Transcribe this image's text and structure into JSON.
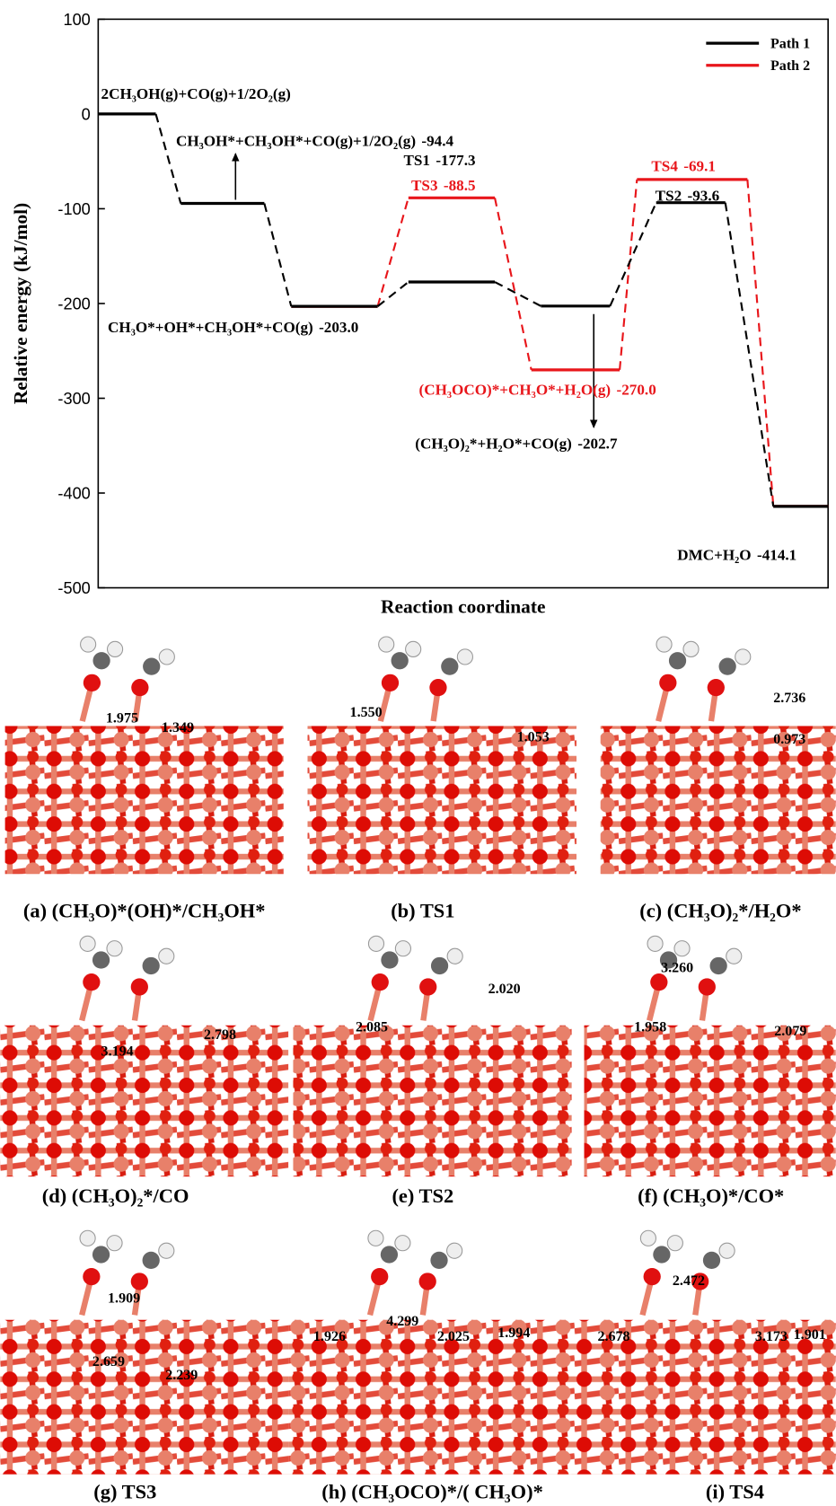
{
  "chart_data": {
    "type": "energy-profile",
    "ylabel": "Relative energy (kJ/mol)",
    "xlabel": "Reaction coordinate",
    "ylim": [
      -500,
      100
    ],
    "yticks": [
      100,
      0,
      -100,
      -200,
      -300,
      -400,
      -500
    ],
    "legend": "upper right",
    "series": [
      {
        "name": "Path 1",
        "color": "#000000",
        "values": [
          0,
          -94.4,
          -203.0,
          -177.3,
          -202.7,
          -93.6,
          -414.1
        ],
        "value_labels": [
          null,
          "-94.4",
          "-203.0",
          "-177.3",
          "-202.7",
          "-93.6",
          "-414.1"
        ],
        "labels": [
          "2CH₃OH(g)+CO(g)+1/2O₂(g)",
          "CH₃OH*+CH₃OH*+CO(g)+1/2O₂(g)",
          "CH₃O*+OH*+CH₃OH*+CO(g)",
          "TS1",
          "(CH₃O)₂*+H₂O*+CO(g)",
          "TS2",
          "DMC+H₂O"
        ]
      },
      {
        "name": "Path 2",
        "color": "#e8161b",
        "values": [
          null,
          null,
          -203.0,
          -88.5,
          -270.0,
          -69.1,
          -414.1
        ],
        "value_labels": [
          null,
          null,
          null,
          "-88.5",
          "-270.0",
          "-69.1",
          null
        ],
        "labels": [
          null,
          null,
          null,
          "TS3",
          "(CH₃OCO)*+CH₃O*+H₂O(g)",
          "TS4",
          null
        ]
      }
    ]
  },
  "panels": [
    {
      "caption": "(a) (CH₃O)*(OH)*/CH₃OH*",
      "distances": [
        "1.975",
        "1.349"
      ]
    },
    {
      "caption": "(b) TS1",
      "distances": [
        "1.550",
        "1.053"
      ]
    },
    {
      "caption": "(c) (CH₃O)₂*/H₂O*",
      "distances": [
        "2.736",
        "0.973"
      ]
    },
    {
      "caption": "(d) (CH₃O)₂*/CO",
      "distances": [
        "3.194",
        "2.798"
      ]
    },
    {
      "caption": "(e) TS2",
      "distances": [
        "2.085",
        "2.020"
      ]
    },
    {
      "caption": "(f) (CH₃O)*/CO*",
      "distances": [
        "3.260",
        "1.958",
        "2.079"
      ]
    },
    {
      "caption": "(g) TS3",
      "distances": [
        "1.909",
        "2.659",
        "2.239"
      ]
    },
    {
      "caption": "(h) (CH₃OCO)*/( CH₃O)*",
      "distances": [
        "1.926",
        "4.299",
        "2.025",
        "1.994"
      ]
    },
    {
      "caption": "(i) TS4",
      "distances": [
        "2.472",
        "2.678",
        "3.173",
        "1.901"
      ]
    }
  ]
}
